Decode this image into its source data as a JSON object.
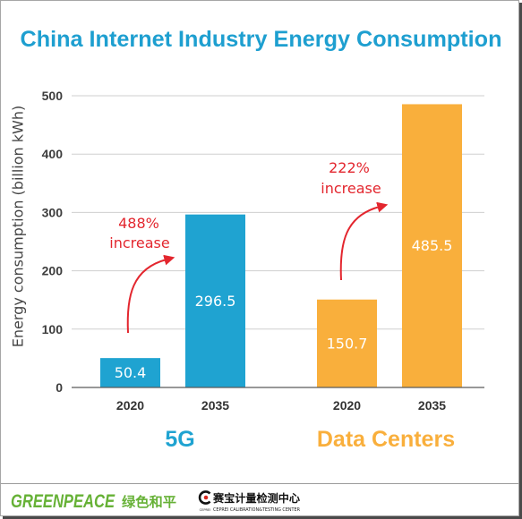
{
  "chart_data": {
    "type": "bar",
    "title": "China Internet Industry Energy Consumption",
    "title_color": "#1e9fd0",
    "xlabel": "",
    "ylabel": "Energy consumption (billion kWh)",
    "ylim": [
      0,
      500
    ],
    "yticks": [
      0,
      100,
      200,
      300,
      400,
      500
    ],
    "grid": true,
    "groups": [
      {
        "name": "5G",
        "color": "#1fa3d1",
        "categories": [
          "2020",
          "2035"
        ],
        "values": [
          50.4,
          296.5
        ],
        "annotation": {
          "change": "488%",
          "text": "increase",
          "color": "#e3262e"
        }
      },
      {
        "name": "Data Centers",
        "color": "#f9af3c",
        "categories": [
          "2020",
          "2035"
        ],
        "values": [
          150.7,
          485.5
        ],
        "annotation": {
          "change": "222%",
          "text": "increase",
          "color": "#e3262e"
        }
      }
    ]
  },
  "footer": {
    "greenpeace_en": "GREENPEACE",
    "greenpeace_cn": "绿色和平",
    "greenpeace_color": "#66b136",
    "ceprei_icon": "ceprei-logo-icon",
    "ceprei_icon_label": "CEPREI",
    "ceprei_cn": "赛宝计量检测中心",
    "ceprei_en": "CEPREI CALIBRATION&TESTING CENTER"
  }
}
